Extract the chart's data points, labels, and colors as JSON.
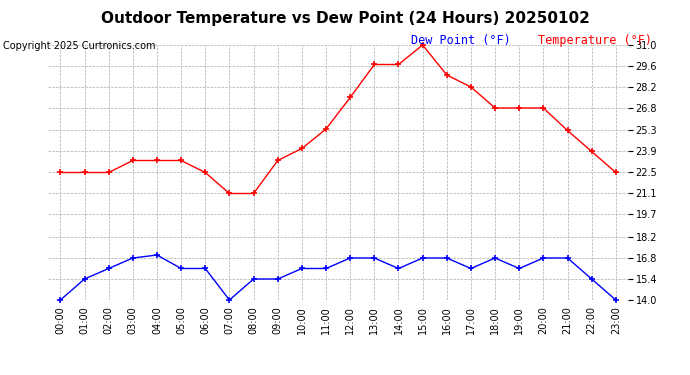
{
  "title": "Outdoor Temperature vs Dew Point (24 Hours) 20250102",
  "copyright": "Copyright 2025 Curtronics.com",
  "legend_dew": "Dew Point (°F)",
  "legend_temp": "Temperature (°F)",
  "hours": [
    "00:00",
    "01:00",
    "02:00",
    "03:00",
    "04:00",
    "05:00",
    "06:00",
    "07:00",
    "08:00",
    "09:00",
    "10:00",
    "11:00",
    "12:00",
    "13:00",
    "14:00",
    "15:00",
    "16:00",
    "17:00",
    "18:00",
    "19:00",
    "20:00",
    "21:00",
    "22:00",
    "23:00"
  ],
  "temperature": [
    22.5,
    22.5,
    22.5,
    23.3,
    23.3,
    23.3,
    22.5,
    21.1,
    21.1,
    23.3,
    24.1,
    25.4,
    27.5,
    29.7,
    29.7,
    31.0,
    29.0,
    28.2,
    26.8,
    26.8,
    26.8,
    25.3,
    23.9,
    22.5
  ],
  "dew_point": [
    14.0,
    15.4,
    16.1,
    16.8,
    17.0,
    16.1,
    16.1,
    14.0,
    15.4,
    15.4,
    16.1,
    16.1,
    16.8,
    16.8,
    16.1,
    16.8,
    16.8,
    16.1,
    16.8,
    16.1,
    16.8,
    16.8,
    15.4,
    14.0
  ],
  "temp_color": "red",
  "dew_color": "blue",
  "marker": "+",
  "ylim_min": 14.0,
  "ylim_max": 31.0,
  "yticks": [
    14.0,
    15.4,
    16.8,
    18.2,
    19.7,
    21.1,
    22.5,
    23.9,
    25.3,
    26.8,
    28.2,
    29.6,
    31.0
  ],
  "bg_color": "#ffffff",
  "grid_color": "#aaaaaa",
  "title_color": "#000000",
  "title_fontsize": 11,
  "copyright_fontsize": 7,
  "legend_fontsize": 8.5,
  "axis_fontsize": 7,
  "linewidth": 1.0,
  "markersize": 4
}
